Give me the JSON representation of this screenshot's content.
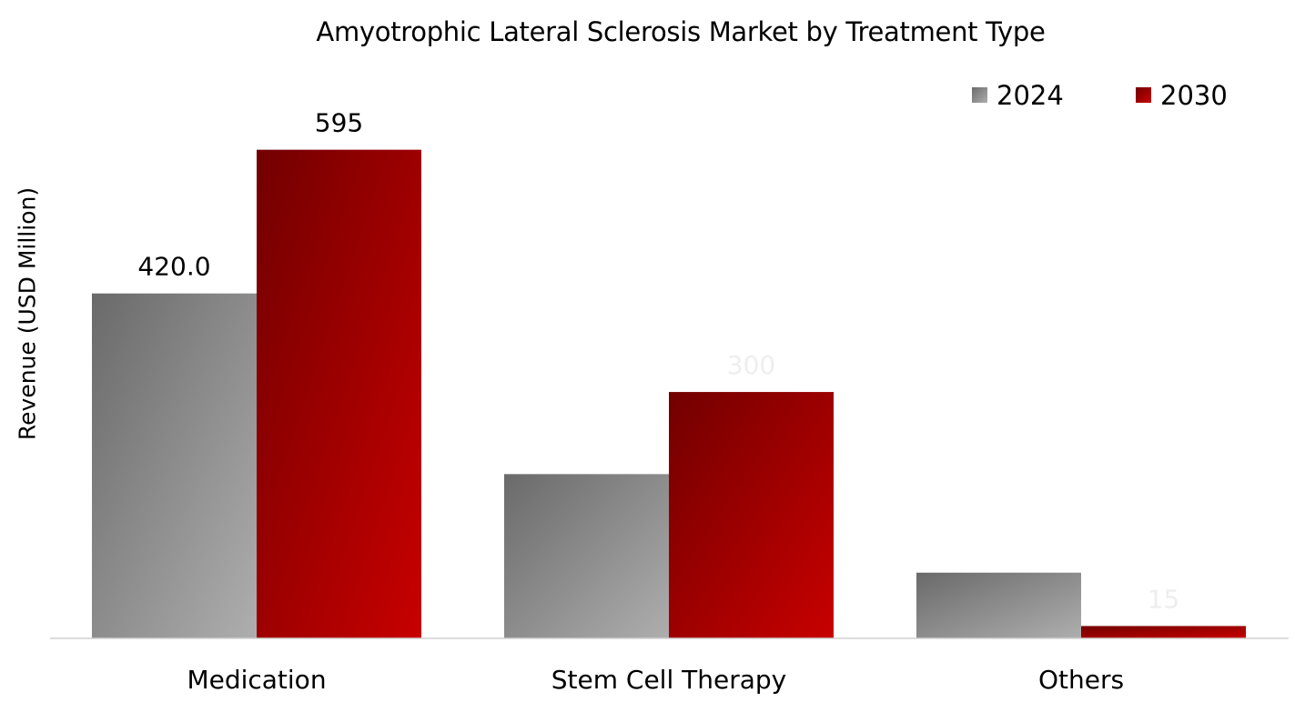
{
  "chart_data": {
    "type": "bar",
    "title": "Amyotrophic Lateral Sclerosis Market by Treatment Type",
    "ylabel": "Revenue (USD Million)",
    "xlabel": "",
    "categories": [
      "Medication",
      "Stem Cell Therapy",
      "Others"
    ],
    "series": [
      {
        "name": "2024",
        "values": [
          420.0,
          200.0,
          80.0
        ],
        "labels": [
          "420.0",
          "",
          ""
        ],
        "color_dark": "#6a6a6a",
        "color_light": "#aeaeae"
      },
      {
        "name": "2030",
        "values": [
          595,
          300,
          15
        ],
        "labels": [
          "595",
          "300",
          "15"
        ],
        "color_dark": "#720000",
        "color_light": "#c80000"
      }
    ],
    "label_colors": [
      "#000000",
      "#eeeeee",
      "#eeeeee"
    ],
    "ylim": [
      0,
      650
    ],
    "grid": false,
    "legend_position": "top-right"
  }
}
